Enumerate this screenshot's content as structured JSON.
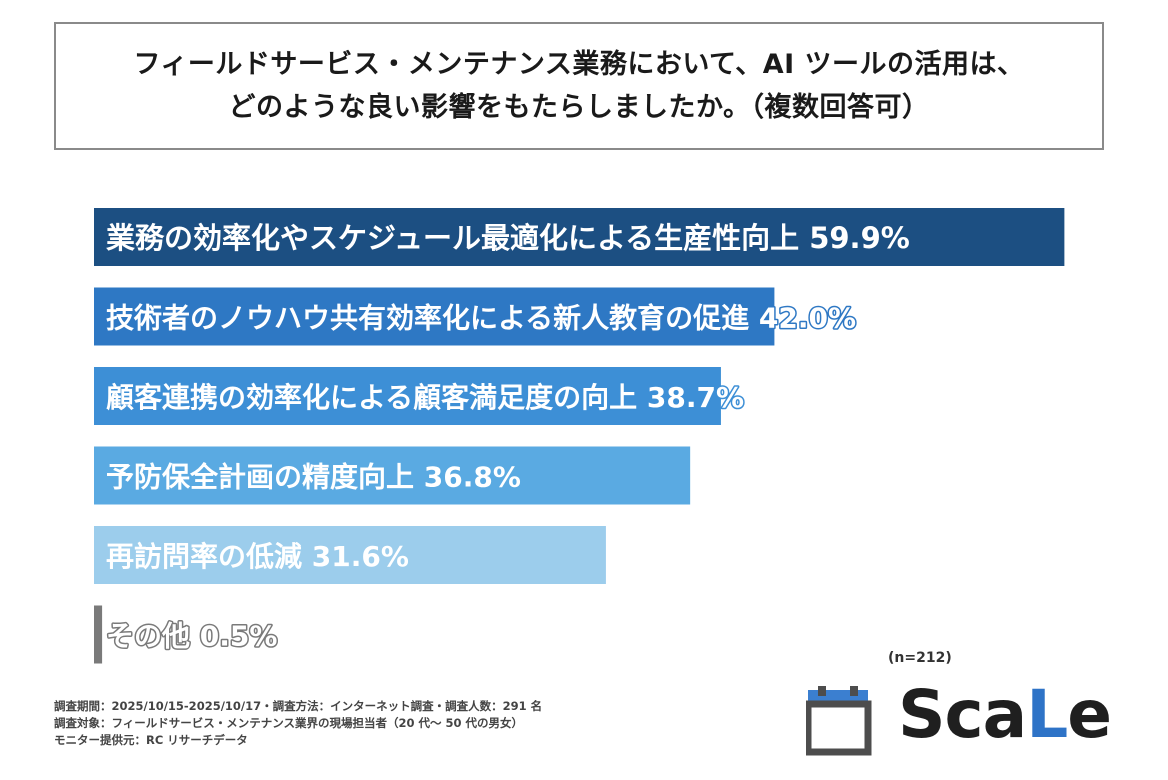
{
  "title": {
    "line1": "フィールドサービス・メンテナンス業務において、AI ツールの活用は、",
    "line2": "どのような良い影響をもたらしましたか。（複数回答可）"
  },
  "chart_data": {
    "type": "bar",
    "orientation": "horizontal",
    "categories": [
      "業務の効率化やスケジュール最適化による生産性向上",
      "技術者のノウハウ共有効率化による新人教育の促進",
      "顧客連携の効率化による顧客満足度の向上",
      "予防保全計画の精度向上",
      "再訪問率の低減",
      "その他"
    ],
    "values": [
      59.9,
      42.0,
      38.7,
      36.8,
      31.6,
      0.5
    ],
    "value_labels": [
      "59.9%",
      "42.0%",
      "38.7%",
      "36.8%",
      "31.6%",
      "0.5%"
    ],
    "colors": [
      "#1c4f82",
      "#2e78c4",
      "#3d8fd6",
      "#5aaae2",
      "#9ccdec",
      "#7a7a7a"
    ],
    "xlim": [
      0,
      60
    ],
    "grid": false,
    "legend": "none"
  },
  "sample_size": "(n=212)",
  "footnotes": [
    "調査期間：2025/10/15-2025/10/17・調査方法：インターネット調査・調査人数：291 名",
    "調査対象：フィールドサービス・メンテナンス業界の現場担当者（20 代〜 50 代の男女）",
    "モニター提供元：RC リサーチデータ"
  ],
  "logo": {
    "text_main": "Sca",
    "text_accent": "L",
    "text_end": "e",
    "icon": "calendar-icon",
    "icon_color": "#3b7fd0",
    "icon_dark": "#4d4d4d",
    "accent_color": "#2e73c7"
  }
}
